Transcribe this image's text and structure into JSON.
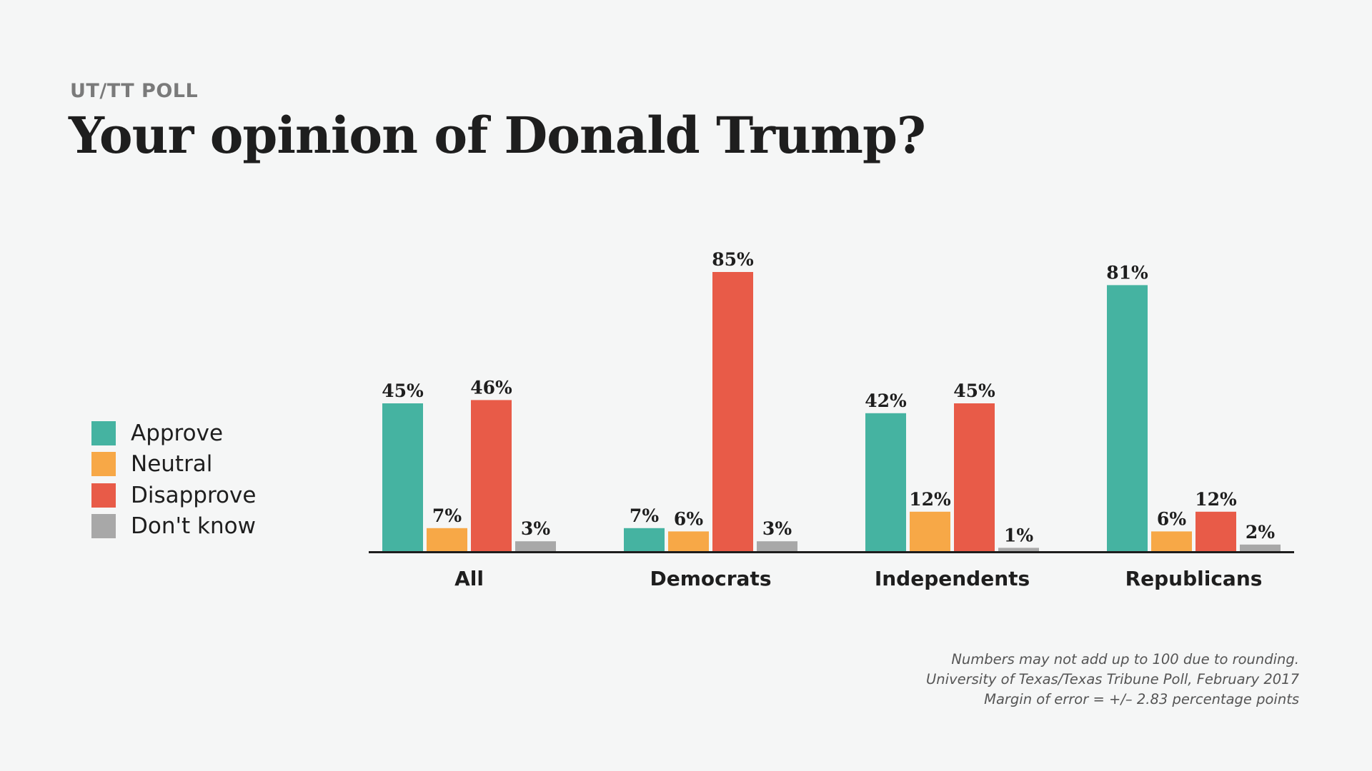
{
  "header": {
    "kicker": "UT/TT POLL",
    "title": "Your opinion of Donald Trump?"
  },
  "legend": [
    {
      "label": "Approve",
      "color": "#45b3a1"
    },
    {
      "label": "Neutral",
      "color": "#f7a847"
    },
    {
      "label": "Disapprove",
      "color": "#e85b48"
    },
    {
      "label": "Don't know",
      "color": "#a8a8a8"
    }
  ],
  "notes": [
    "Numbers may not add up to 100 due to rounding.",
    "University of Texas/Texas Tribune Poll, February 2017",
    "Margin of error = +/– 2.83 percentage points"
  ],
  "chart_data": {
    "type": "bar",
    "title": "Your opinion of Donald Trump?",
    "categories": [
      "All",
      "Democrats",
      "Independents",
      "Republicans"
    ],
    "series": [
      {
        "name": "Approve",
        "color": "#45b3a1",
        "values": [
          45,
          7,
          42,
          81
        ]
      },
      {
        "name": "Neutral",
        "color": "#f7a847",
        "values": [
          7,
          6,
          12,
          6
        ]
      },
      {
        "name": "Disapprove",
        "color": "#e85b48",
        "values": [
          46,
          85,
          45,
          12
        ]
      },
      {
        "name": "Don't know",
        "color": "#a8a8a8",
        "values": [
          3,
          3,
          1,
          2
        ]
      }
    ],
    "value_suffix": "%",
    "ylim": [
      0,
      100
    ],
    "grid": false,
    "legend_position": "left"
  }
}
